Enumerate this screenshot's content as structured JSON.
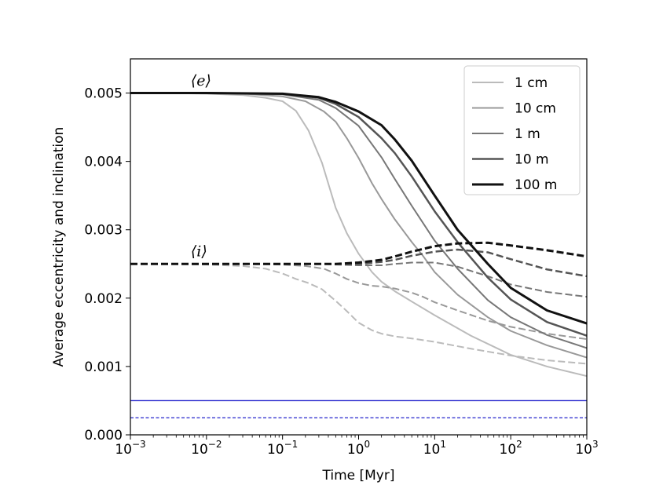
{
  "chart_data": {
    "type": "line",
    "xlabel": "Time [Myr]",
    "ylabel": "Average eccentricity and inclination",
    "xscale": "log",
    "xlim": [
      0.001,
      1000
    ],
    "ylim": [
      0.0,
      0.0055
    ],
    "x_ticks": [
      {
        "value": 0.001,
        "base": "10",
        "exp": "−3"
      },
      {
        "value": 0.01,
        "base": "10",
        "exp": "−2"
      },
      {
        "value": 0.1,
        "base": "10",
        "exp": "−1"
      },
      {
        "value": 1,
        "base": "10",
        "exp": "0"
      },
      {
        "value": 10,
        "base": "10",
        "exp": "1"
      },
      {
        "value": 100,
        "base": "10",
        "exp": "2"
      },
      {
        "value": 1000,
        "base": "10",
        "exp": "3"
      }
    ],
    "y_ticks": [
      "0.000",
      "0.001",
      "0.002",
      "0.003",
      "0.004",
      "0.005"
    ],
    "y_tick_values": [
      0.0,
      0.001,
      0.002,
      0.003,
      0.004,
      0.005
    ],
    "legend_position": "top-right",
    "annotations": [
      {
        "text": "⟨e⟩",
        "x": 0.01,
        "y": 0.00518
      },
      {
        "text": "⟨i⟩",
        "x": 0.01,
        "y": 0.00268
      }
    ],
    "series": [
      {
        "name": "1 cm",
        "color": "#bbbbbb",
        "width": 2,
        "x": [
          0.001,
          0.003,
          0.01,
          0.03,
          0.06,
          0.1,
          0.15,
          0.22,
          0.33,
          0.5,
          0.7,
          1,
          1.5,
          2,
          3,
          5,
          10,
          30,
          100,
          300,
          1000
        ],
        "ecc": [
          0.005,
          0.005,
          0.00499,
          0.00497,
          0.00493,
          0.00488,
          0.00474,
          0.00445,
          0.00398,
          0.00332,
          0.00295,
          0.00265,
          0.00238,
          0.00224,
          0.0021,
          0.00195,
          0.00175,
          0.00145,
          0.00117,
          0.001,
          0.00086
        ],
        "inc": [
          0.0025,
          0.0025,
          0.00249,
          0.00247,
          0.00243,
          0.00236,
          0.00228,
          0.00222,
          0.00213,
          0.00196,
          0.00181,
          0.00164,
          0.00153,
          0.00148,
          0.00144,
          0.00141,
          0.00136,
          0.00126,
          0.00116,
          0.00109,
          0.00104
        ]
      },
      {
        "name": "10 cm",
        "color": "#999999",
        "width": 2,
        "x": [
          0.001,
          0.01,
          0.03,
          0.1,
          0.2,
          0.35,
          0.5,
          0.7,
          1,
          1.5,
          2,
          3,
          5,
          7,
          10,
          20,
          50,
          100,
          300,
          1000
        ],
        "ecc": [
          0.005,
          0.005,
          0.00499,
          0.00495,
          0.00488,
          0.00473,
          0.00458,
          0.00434,
          0.00405,
          0.00368,
          0.00345,
          0.00315,
          0.00282,
          0.00262,
          0.00238,
          0.00205,
          0.00172,
          0.00152,
          0.00131,
          0.00113
        ],
        "inc": [
          0.0025,
          0.0025,
          0.0025,
          0.00249,
          0.00247,
          0.00243,
          0.00236,
          0.00228,
          0.00222,
          0.00218,
          0.00217,
          0.00214,
          0.00208,
          0.00202,
          0.00194,
          0.00182,
          0.00167,
          0.00158,
          0.00148,
          0.0014
        ]
      },
      {
        "name": "1 m",
        "color": "#777777",
        "width": 2,
        "x": [
          0.001,
          0.01,
          0.1,
          0.3,
          0.5,
          1,
          2,
          3,
          5,
          10,
          20,
          50,
          100,
          300,
          1000
        ],
        "ecc": [
          0.005,
          0.005,
          0.00498,
          0.0049,
          0.00478,
          0.00452,
          0.00406,
          0.00374,
          0.00335,
          0.00284,
          0.00243,
          0.00197,
          0.00172,
          0.00146,
          0.00127
        ],
        "inc": [
          0.0025,
          0.0025,
          0.0025,
          0.0025,
          0.00249,
          0.00248,
          0.00248,
          0.0025,
          0.00252,
          0.00252,
          0.00246,
          0.00232,
          0.0022,
          0.00209,
          0.00202
        ]
      },
      {
        "name": "10 m",
        "color": "#555555",
        "width": 2.5,
        "x": [
          0.001,
          0.01,
          0.1,
          0.3,
          0.5,
          1,
          2,
          3,
          5,
          10,
          20,
          50,
          100,
          300,
          1000
        ],
        "ecc": [
          0.005,
          0.005,
          0.00499,
          0.00493,
          0.00484,
          0.00465,
          0.00434,
          0.00412,
          0.00378,
          0.00327,
          0.00282,
          0.0023,
          0.00198,
          0.00165,
          0.00145
        ],
        "inc": [
          0.0025,
          0.0025,
          0.0025,
          0.0025,
          0.0025,
          0.0025,
          0.00253,
          0.00256,
          0.00262,
          0.00268,
          0.00271,
          0.00267,
          0.00257,
          0.00242,
          0.00232
        ]
      },
      {
        "name": "100 m",
        "color": "#111111",
        "width": 3,
        "x": [
          0.001,
          0.01,
          0.1,
          0.3,
          0.5,
          1,
          2,
          3,
          5,
          10,
          20,
          50,
          100,
          300,
          1000
        ],
        "ecc": [
          0.005,
          0.005,
          0.00499,
          0.00494,
          0.00487,
          0.00473,
          0.00453,
          0.00432,
          0.00401,
          0.0035,
          0.003,
          0.0025,
          0.00215,
          0.00182,
          0.00163
        ],
        "inc": [
          0.0025,
          0.0025,
          0.0025,
          0.0025,
          0.0025,
          0.00252,
          0.00256,
          0.00261,
          0.00268,
          0.00276,
          0.0028,
          0.00281,
          0.00277,
          0.0027,
          0.00261
        ]
      }
    ],
    "reference_lines": [
      {
        "y": 0.0005,
        "color": "#2222cc",
        "style": "solid"
      },
      {
        "y": 0.00025,
        "color": "#2222cc",
        "style": "dashed"
      }
    ]
  }
}
